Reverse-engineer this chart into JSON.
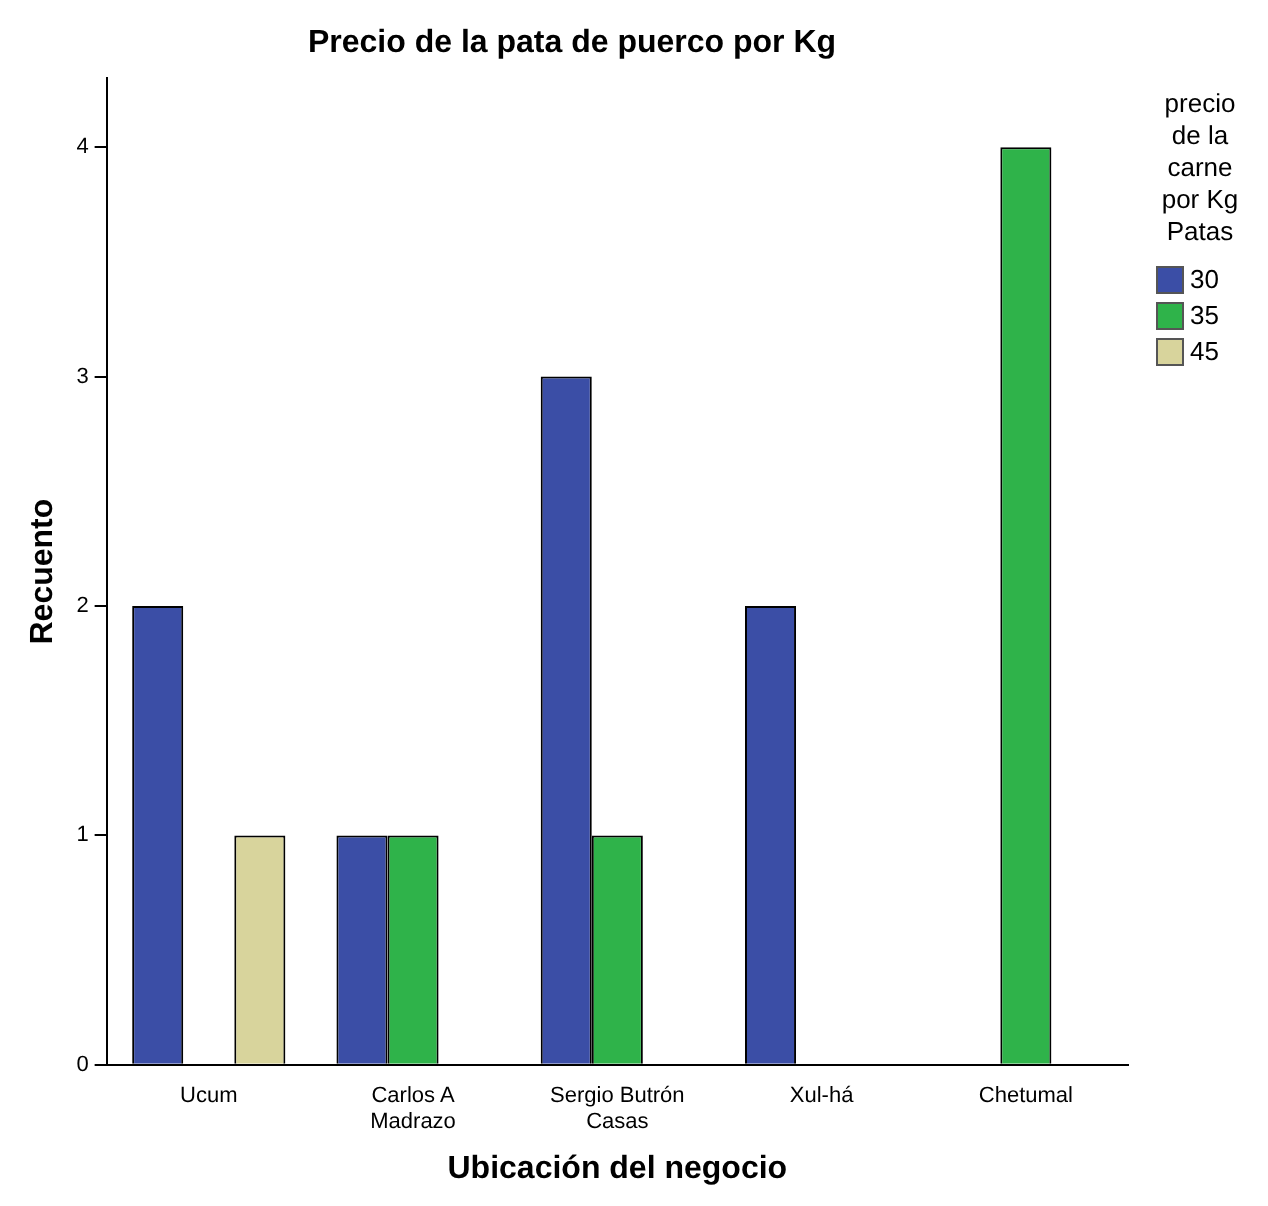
{
  "chart_data": {
    "type": "bar",
    "title": "Precio de la pata de puerco por Kg",
    "xlabel": "Ubicación del negocio",
    "ylabel": "Recuento",
    "legend_title": "precio de la carne por Kg Patas",
    "categories": [
      "Ucum",
      "Carlos A\nMadrazo",
      "Sergio Butrón\nCasas",
      "Xul-há",
      "Chetumal"
    ],
    "series": [
      {
        "name": "30",
        "color": "#3b4ea6",
        "values": [
          2,
          1,
          3,
          2,
          null
        ]
      },
      {
        "name": "35",
        "color": "#2fb34a",
        "values": [
          null,
          1,
          1,
          null,
          4
        ]
      },
      {
        "name": "45",
        "color": "#d8d49c",
        "values": [
          1,
          null,
          null,
          null,
          null
        ]
      }
    ],
    "ylim": [
      0,
      4.3
    ],
    "yticks": [
      0,
      1,
      2,
      3,
      4
    ],
    "grid": false,
    "legend": "right"
  }
}
